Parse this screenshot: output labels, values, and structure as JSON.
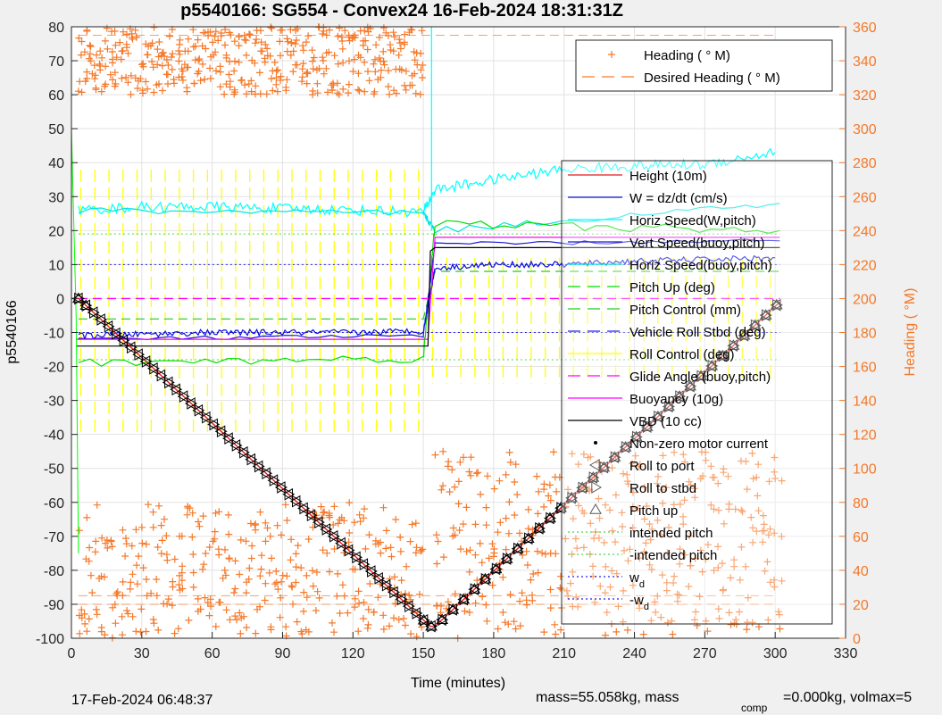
{
  "chart_data": {
    "type": "line",
    "title": "p5540166: SG554 - Convex24 16-Feb-2024 18:31:31Z",
    "xlabel": "Time (minutes)",
    "ylabel": "p5540166",
    "y2label": "Heading (  °M)",
    "xlim": [
      0,
      330
    ],
    "ylim": [
      -100,
      80
    ],
    "y2lim": [
      0,
      360
    ],
    "x_ticks": [
      "0",
      "30",
      "60",
      "90",
      "120",
      "150",
      "180",
      "210",
      "240",
      "270",
      "300",
      "330"
    ],
    "y_ticks": [
      "80",
      "70",
      "60",
      "50",
      "40",
      "30",
      "20",
      "10",
      "0",
      "-10",
      "-20",
      "-30",
      "-40",
      "-50",
      "-60",
      "-70",
      "-80",
      "-90",
      "-100"
    ],
    "y2_ticks": [
      "360",
      "340",
      "320",
      "300",
      "280",
      "260",
      "240",
      "220",
      "200",
      "180",
      "160",
      "140",
      "120",
      "100",
      "80",
      "60",
      "40",
      "20",
      "0"
    ],
    "grid": true,
    "colors": {
      "heading": "#f5792a",
      "height": "#e41a1c",
      "w": "#0a10d8",
      "horiz_w": "#00ffff",
      "vert_buoy": "#1616d8",
      "horiz_buoy": "#00e5e5",
      "pitch_up": "#00dd00",
      "pitch_control": "#22cc22",
      "roll": "#ffff00",
      "glide": "#ff00ff",
      "vbd": "#000000",
      "intended": "#44dd44",
      "wd": "#2222ee"
    },
    "heading_legend": [
      {
        "name": "Heading (  ° M)",
        "style": "plus"
      },
      {
        "name": "Desired Heading (    ° M)",
        "style": "dashed"
      }
    ],
    "series_legend": [
      {
        "name": "Height (10m)",
        "style": "solid"
      },
      {
        "name": "W = dz/dt (cm/s)",
        "style": "solid"
      },
      {
        "name": "Horiz Speed(W,pitch)",
        "style": "solid"
      },
      {
        "name": "Vert Speed(buoy,pitch)",
        "style": "solid"
      },
      {
        "name": "Horiz Speed(buoy,pitch)",
        "style": "solid"
      },
      {
        "name": "Pitch Up (deg)",
        "style": "dashed"
      },
      {
        "name": "Pitch Control (mm)",
        "style": "dashed"
      },
      {
        "name": "Vehicle Roll Stbd (deg)",
        "style": "dashed"
      },
      {
        "name": "Roll Control (deg)",
        "style": "solid"
      },
      {
        "name": "Glide Angle (buoy,pitch)",
        "style": "dashed"
      },
      {
        "name": "Buoyancy (10g)",
        "style": "solid"
      },
      {
        "name": "VBD (10 cc)",
        "style": "solid"
      },
      {
        "name": "Non-zero motor current",
        "style": "dot"
      },
      {
        "name": "Roll to port",
        "style": "tri-left"
      },
      {
        "name": "Roll to stbd",
        "style": "tri-right"
      },
      {
        "name": "Pitch up",
        "style": "tri-up"
      },
      {
        "name": "intended pitch",
        "style": "dotted"
      },
      {
        "name": "-intended pitch",
        "style": "dotted"
      },
      {
        "name": "w",
        "sub": "d",
        "style": "dotted"
      },
      {
        "name": "-w",
        "sub": "d",
        "style": "dotted"
      }
    ],
    "height_profile": {
      "x": [
        0,
        3,
        153,
        155,
        302
      ],
      "y": [
        0,
        0,
        -96.5,
        -96.5,
        -1
      ]
    },
    "vbd": {
      "x": [
        2,
        152,
        153,
        155,
        302
      ],
      "y": [
        -14,
        -14,
        14,
        15,
        15
      ]
    },
    "buoyancy": {
      "x": [
        2,
        152,
        155,
        302
      ],
      "y": [
        -12,
        -12,
        18,
        18
      ]
    },
    "w": {
      "x": [
        3,
        30,
        60,
        90,
        120,
        150,
        155,
        180,
        210,
        240,
        270,
        300
      ],
      "y": [
        -11,
        -10.5,
        -10,
        -10,
        -10,
        -9.5,
        9,
        10,
        10,
        11,
        11.5,
        12
      ]
    },
    "vert_speed_buoy": {
      "x": [
        3,
        150,
        155,
        302
      ],
      "y": [
        -12,
        -11,
        16,
        17
      ]
    },
    "horiz_speed_w": {
      "x": [
        3,
        30,
        60,
        90,
        120,
        150,
        155,
        180,
        210,
        240,
        270,
        300
      ],
      "y": [
        26,
        27,
        27,
        26.5,
        26,
        25.5,
        32,
        35,
        38,
        39,
        39.5,
        43
      ]
    },
    "horiz_speed_buoy": {
      "x": [
        3,
        150,
        155,
        302
      ],
      "y": [
        26,
        25,
        20,
        28
      ]
    },
    "pitch_up": {
      "x": [
        3,
        150,
        155,
        302
      ],
      "y": [
        -19,
        -17.5,
        22,
        20
      ]
    },
    "pitch_control": {
      "x": [
        3,
        150,
        155,
        302
      ],
      "y": [
        -6,
        -6,
        8,
        8
      ]
    },
    "glide_angle": {
      "x": [
        3,
        150,
        155,
        302
      ],
      "y": [
        0,
        0,
        0,
        0
      ]
    },
    "intended_pitch": [
      19,
      -18
    ],
    "wd": [
      10,
      -10
    ],
    "heading_descent": {
      "x_range": [
        3,
        150
      ],
      "y_range": [
        300,
        360
      ],
      "y_low_range": [
        0,
        80
      ]
    },
    "heading_ascent": {
      "x_range": [
        155,
        302
      ],
      "y_range": [
        0,
        110
      ]
    },
    "desired_heading_levels": [
      355,
      20,
      25
    ],
    "footer_left": "17-Feb-2024 06:48:37",
    "footer_mass": "mass=55.058kg, mass",
    "footer_sub": "comp",
    "footer_rest": "=0.000kg, volmax=5"
  }
}
